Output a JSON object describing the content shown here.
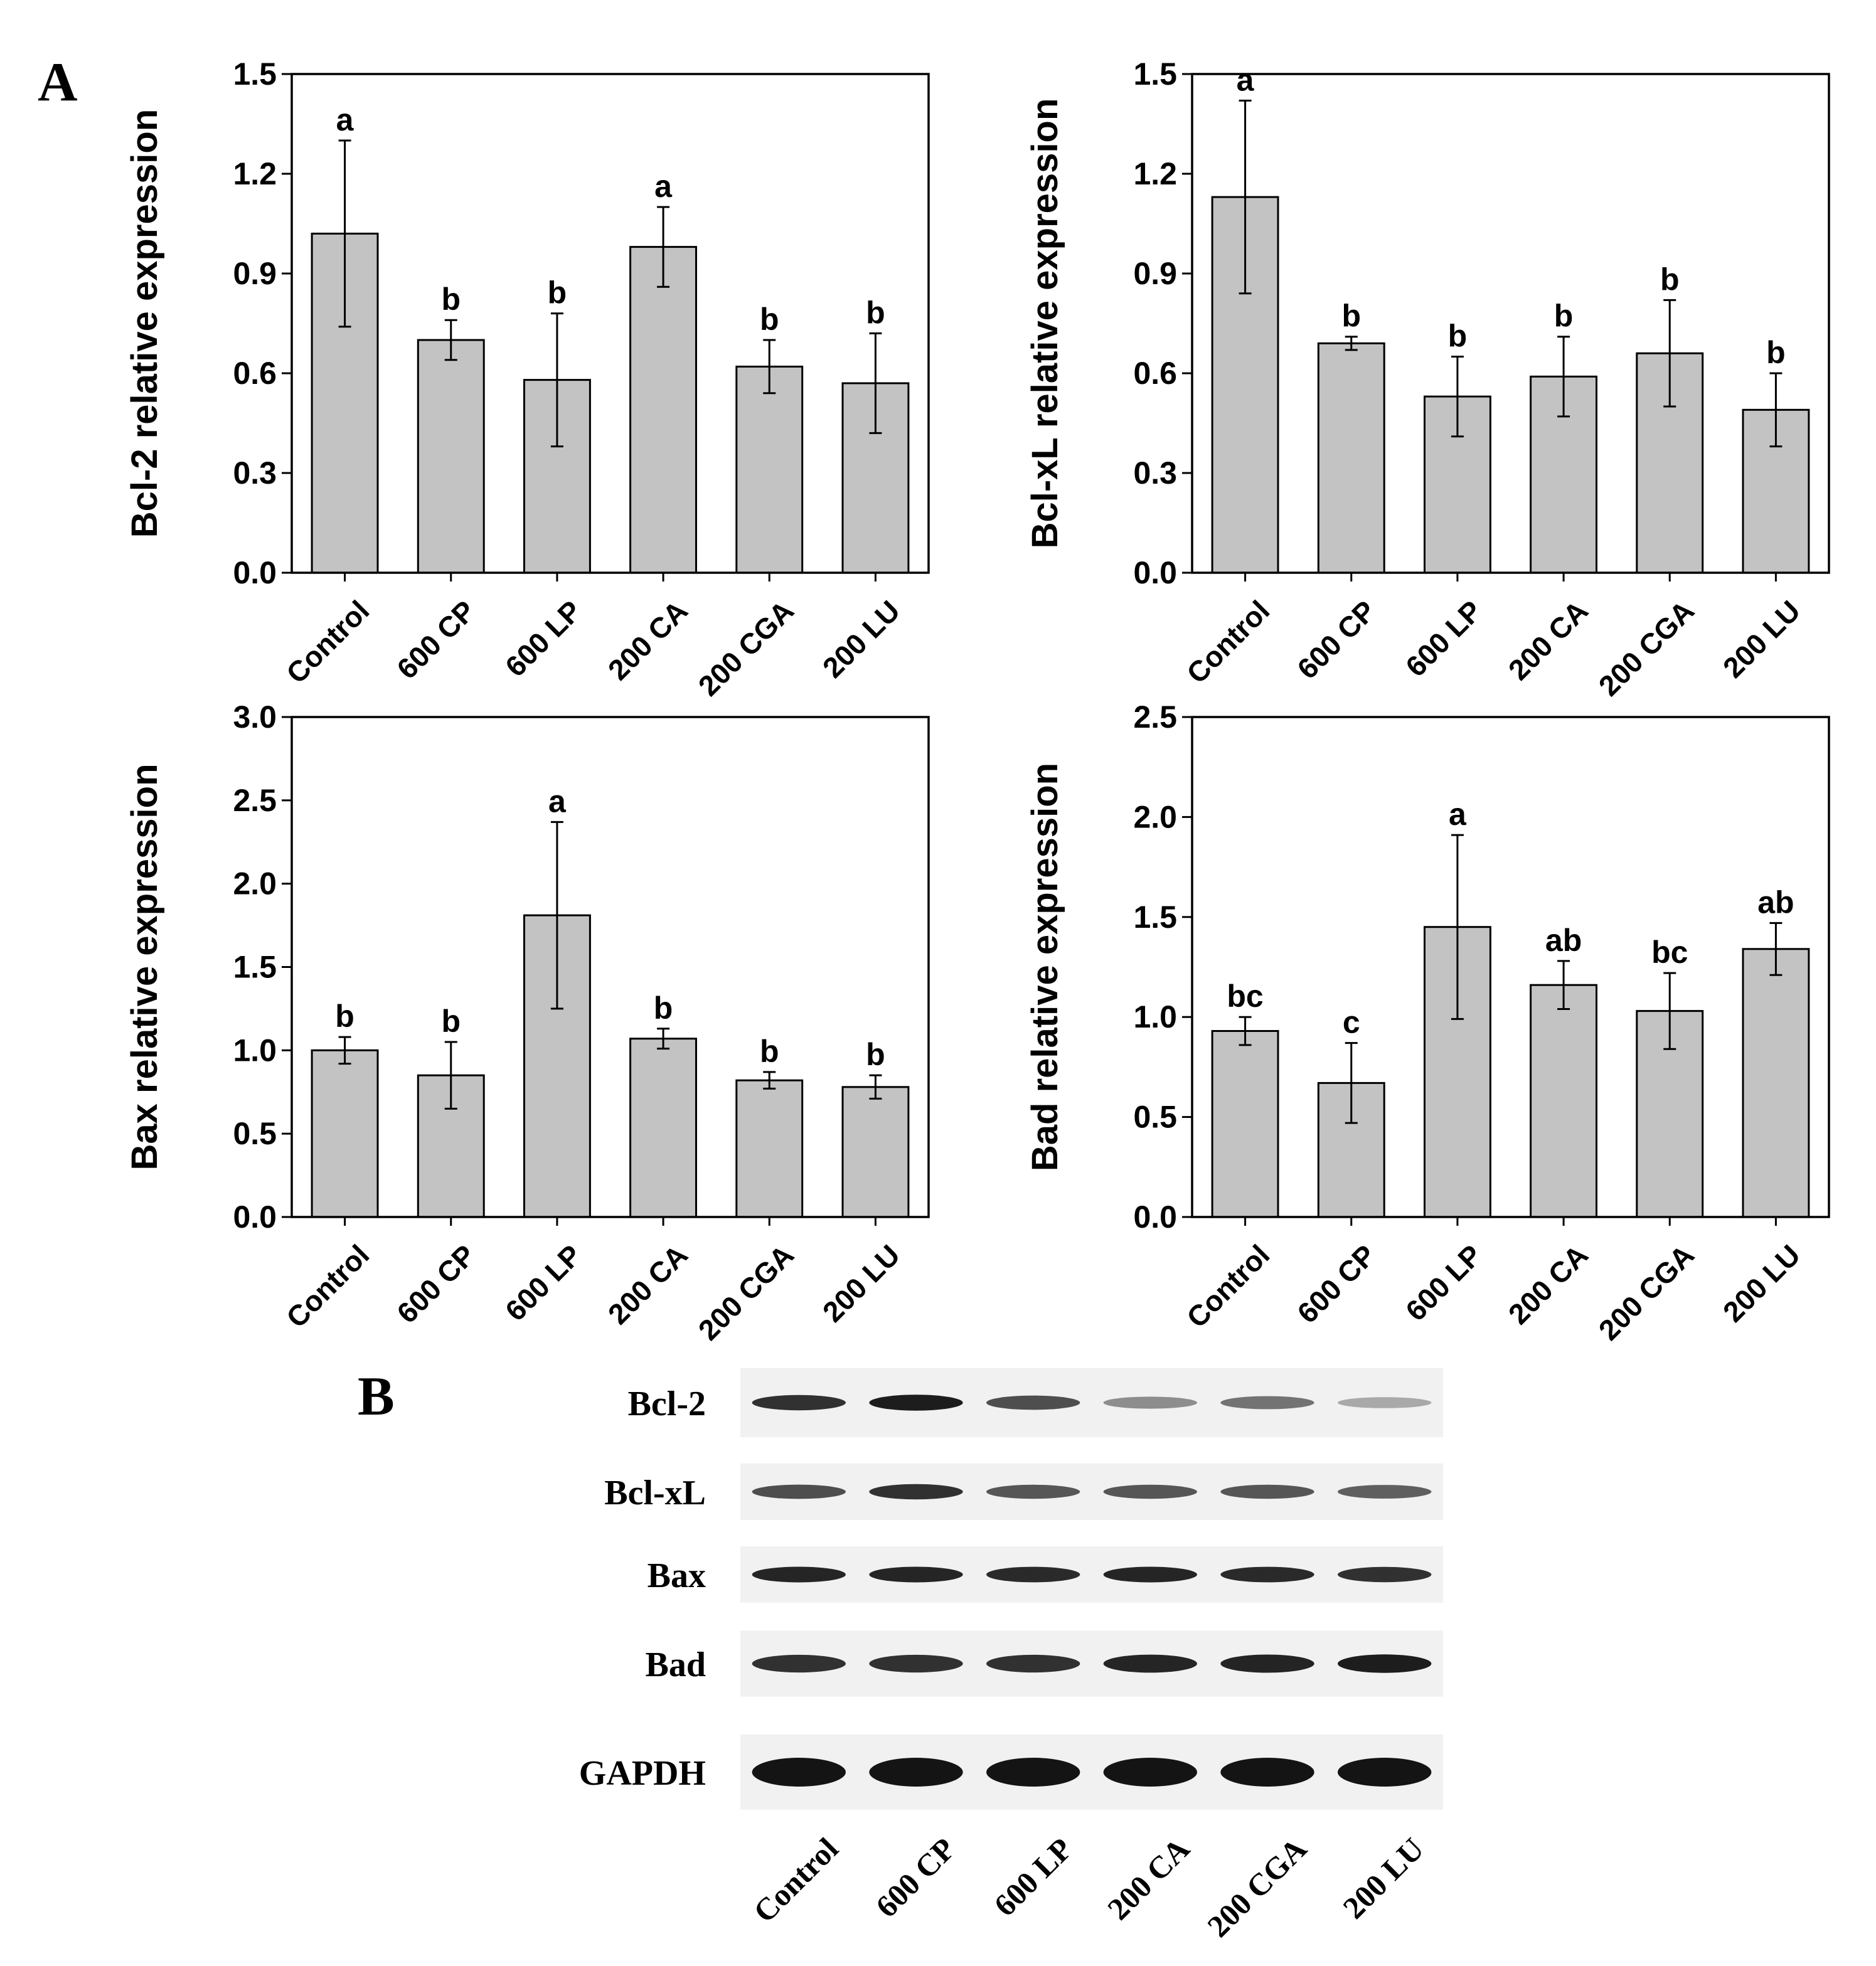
{
  "panel_labels": {
    "a": "A",
    "b": "B"
  },
  "colors": {
    "bar_fill": "#c3c3c3",
    "bar_stroke": "#000000",
    "axis": "#000000",
    "blot_bg": "#f1f1f1",
    "band": "#141414"
  },
  "chart_data": [
    {
      "id": "bcl2",
      "type": "bar",
      "title": "",
      "xlabel": "",
      "ylabel": "Bcl-2 relative expression",
      "categories": [
        "Control",
        "600 CP",
        "600 LP",
        "200 CA",
        "200 CGA",
        "200 LU"
      ],
      "values": [
        1.02,
        0.7,
        0.58,
        0.98,
        0.62,
        0.57
      ],
      "errors": [
        0.28,
        0.06,
        0.2,
        0.12,
        0.08,
        0.15
      ],
      "significance": [
        "a",
        "b",
        "b",
        "a",
        "b",
        "b"
      ],
      "ylim": [
        0,
        1.5
      ],
      "yticks": [
        "0.0",
        "0.3",
        "0.6",
        "0.9",
        "1.2",
        "1.5"
      ]
    },
    {
      "id": "bclxl",
      "type": "bar",
      "title": "",
      "xlabel": "",
      "ylabel": "Bcl-xL relative expression",
      "categories": [
        "Control",
        "600 CP",
        "600 LP",
        "200 CA",
        "200 CGA",
        "200 LU"
      ],
      "values": [
        1.13,
        0.69,
        0.53,
        0.59,
        0.66,
        0.49
      ],
      "errors": [
        0.29,
        0.02,
        0.12,
        0.12,
        0.16,
        0.11
      ],
      "significance": [
        "a",
        "b",
        "b",
        "b",
        "b",
        "b"
      ],
      "ylim": [
        0,
        1.5
      ],
      "yticks": [
        "0.0",
        "0.3",
        "0.6",
        "0.9",
        "1.2",
        "1.5"
      ]
    },
    {
      "id": "bax",
      "type": "bar",
      "title": "",
      "xlabel": "",
      "ylabel": "Bax relative expression",
      "categories": [
        "Control",
        "600 CP",
        "600 LP",
        "200 CA",
        "200 CGA",
        "200 LU"
      ],
      "values": [
        1.0,
        0.85,
        1.81,
        1.07,
        0.82,
        0.78
      ],
      "errors": [
        0.08,
        0.2,
        0.56,
        0.06,
        0.05,
        0.07
      ],
      "significance": [
        "b",
        "b",
        "a",
        "b",
        "b",
        "b"
      ],
      "ylim": [
        0,
        3.0
      ],
      "yticks": [
        "0.0",
        "0.5",
        "1.0",
        "1.5",
        "2.0",
        "2.5",
        "3.0"
      ]
    },
    {
      "id": "bad",
      "type": "bar",
      "title": "",
      "xlabel": "",
      "ylabel": "Bad relative expression",
      "categories": [
        "Control",
        "600 CP",
        "600 LP",
        "200 CA",
        "200 CGA",
        "200 LU"
      ],
      "values": [
        0.93,
        0.67,
        1.45,
        1.16,
        1.03,
        1.34
      ],
      "errors": [
        0.07,
        0.2,
        0.46,
        0.12,
        0.19,
        0.13
      ],
      "significance": [
        "bc",
        "c",
        "a",
        "ab",
        "bc",
        "ab"
      ],
      "ylim": [
        0,
        2.5
      ],
      "yticks": [
        "0.0",
        "0.5",
        "1.0",
        "1.5",
        "2.0",
        "2.5"
      ]
    }
  ],
  "western_blot": {
    "proteins": [
      "Bcl-2",
      "Bcl-xL",
      "Bax",
      "Bad",
      "GAPDH"
    ],
    "lanes": [
      "Control",
      "600 CP",
      "600 LP",
      "200 CA",
      "200 CGA",
      "200 LU"
    ],
    "band_intensity": [
      [
        0.85,
        0.95,
        0.7,
        0.35,
        0.5,
        0.2
      ],
      [
        0.7,
        0.85,
        0.65,
        0.65,
        0.65,
        0.6
      ],
      [
        0.9,
        0.9,
        0.88,
        0.9,
        0.88,
        0.85
      ],
      [
        0.85,
        0.85,
        0.85,
        0.9,
        0.92,
        0.95
      ],
      [
        1.0,
        1.0,
        1.0,
        1.0,
        1.0,
        1.0
      ]
    ]
  }
}
